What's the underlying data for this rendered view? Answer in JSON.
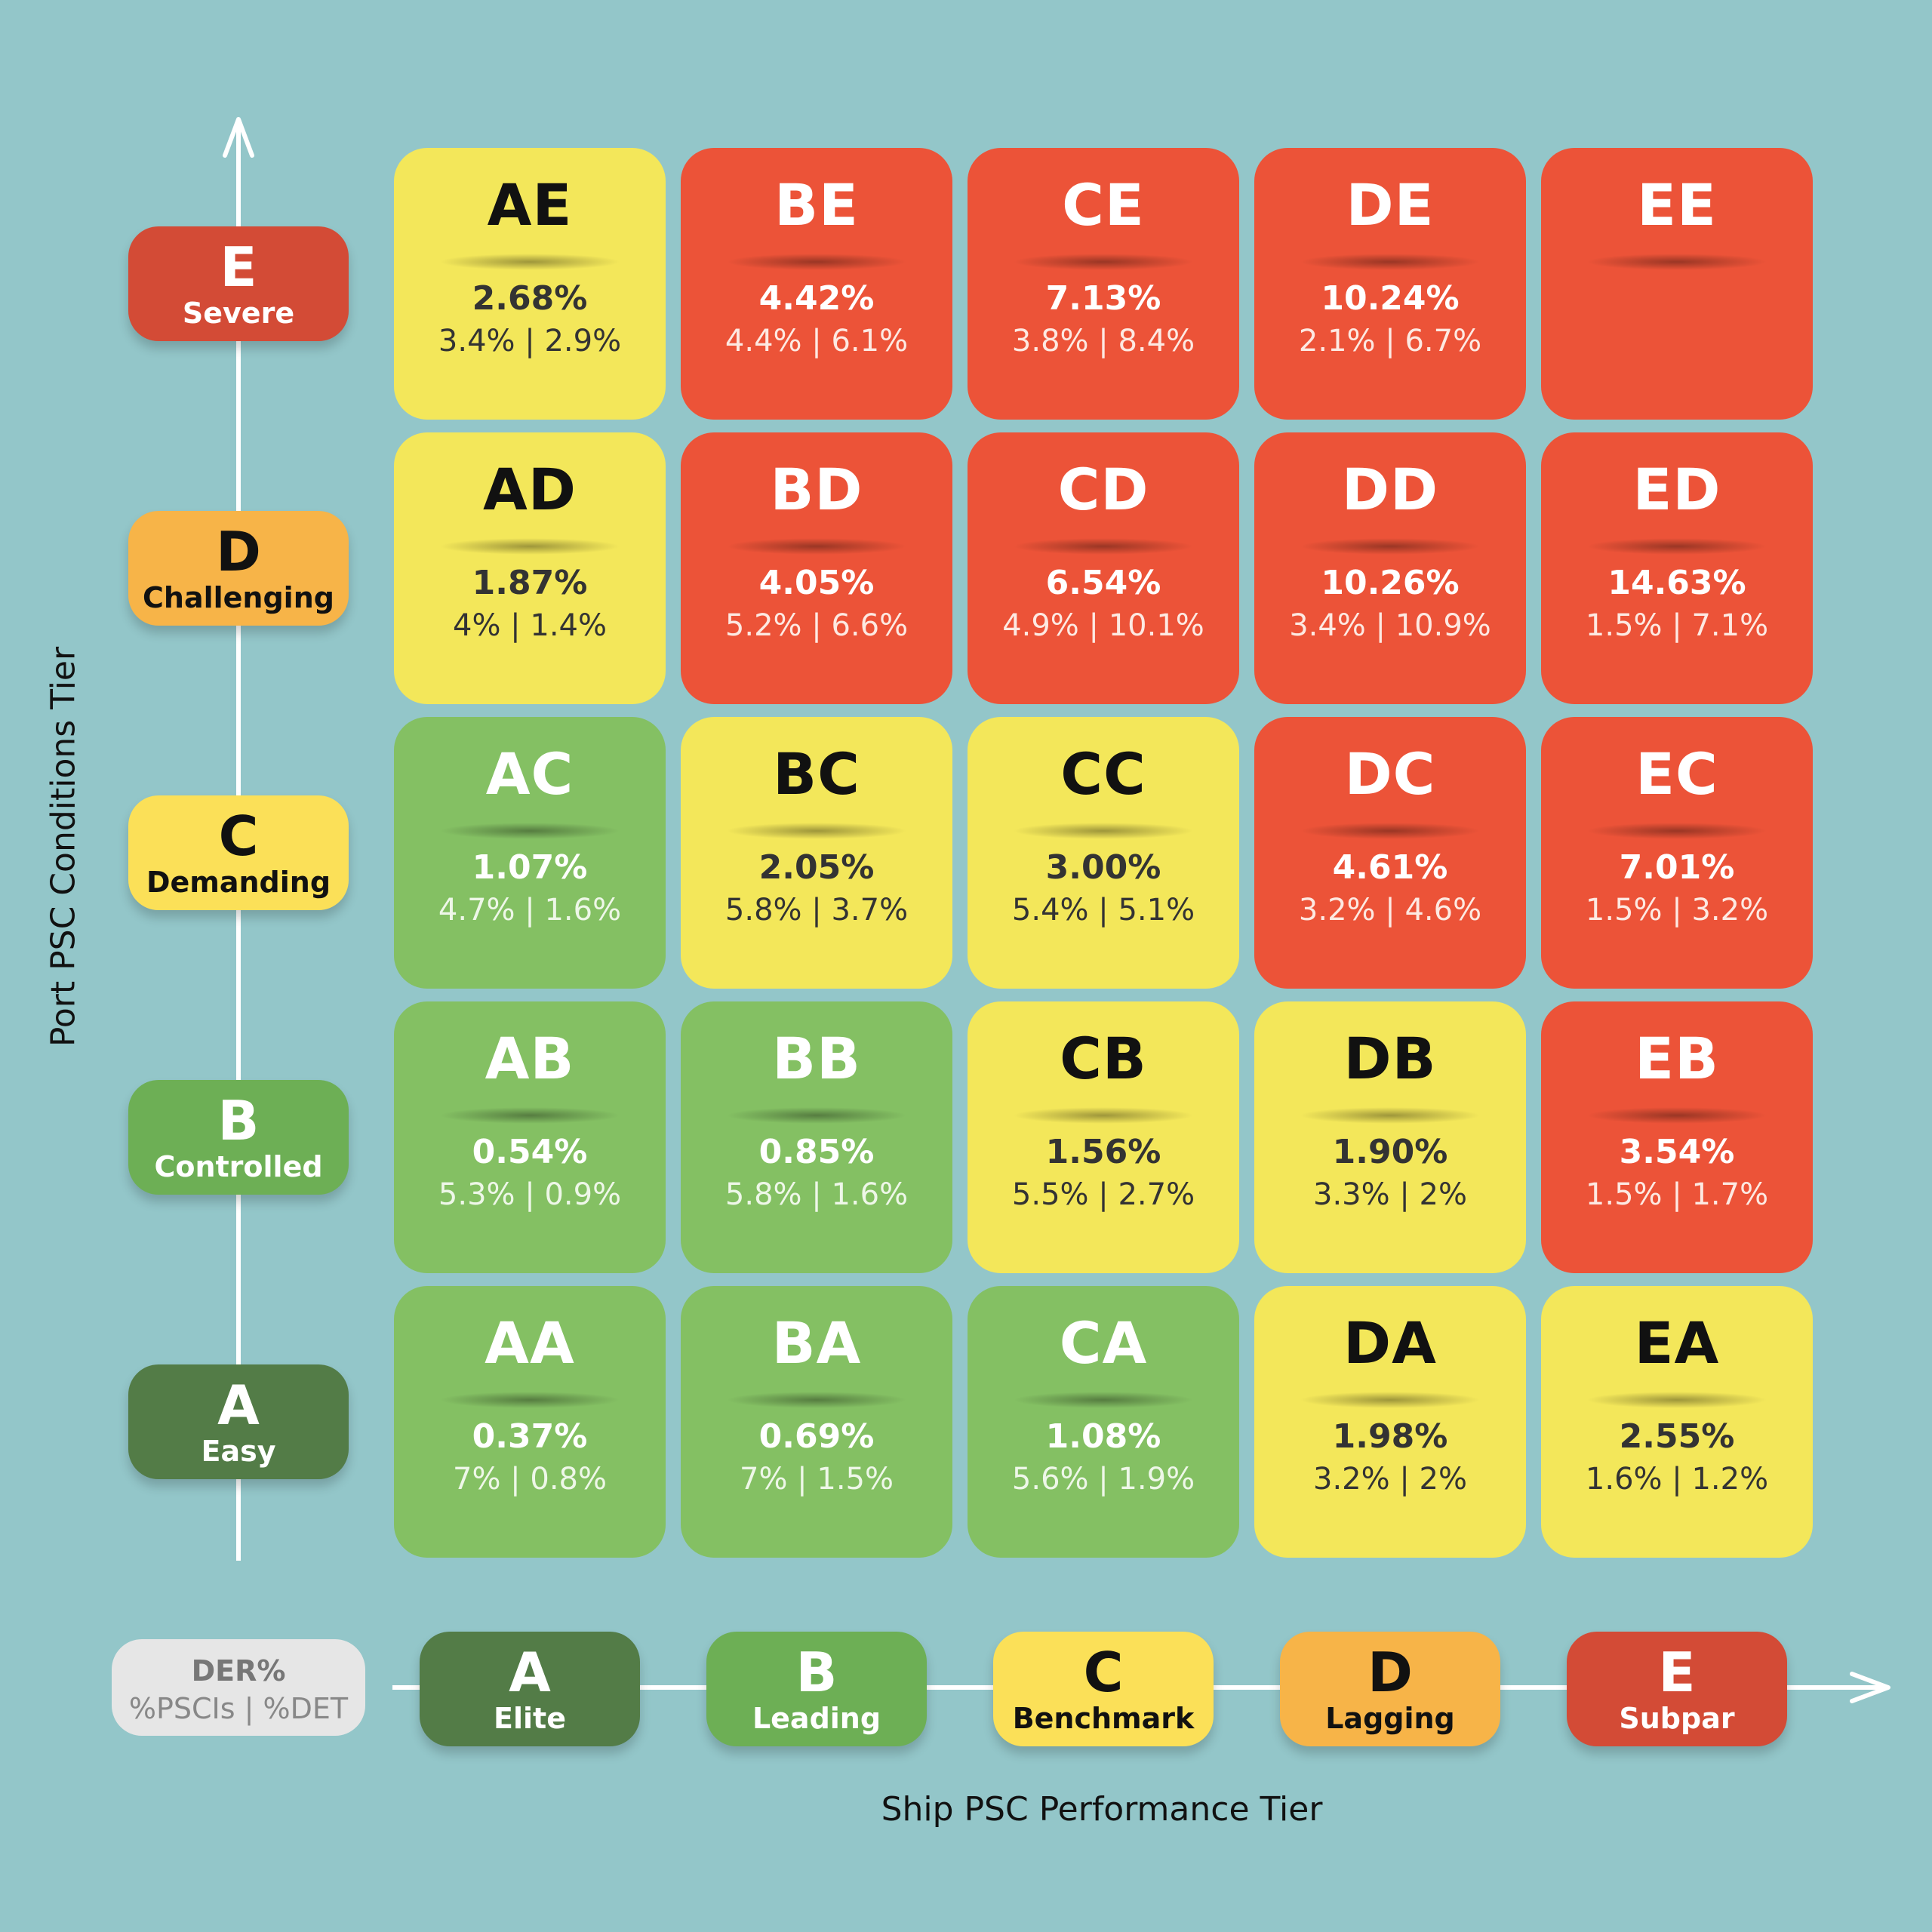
{
  "chart_data": {
    "type": "heatmap",
    "title": "",
    "xlabel": "Ship PSC Performance Tier",
    "ylabel": "Port PSC Conditions Tier",
    "legend": {
      "primary": "DER%",
      "secondary": "%PSCIs | %DET"
    },
    "x_tiers": [
      {
        "letter": "A",
        "label": "Elite",
        "color": "#537c47"
      },
      {
        "letter": "B",
        "label": "Leading",
        "color": "#6daf55"
      },
      {
        "letter": "C",
        "label": "Benchmark",
        "color": "#fbe058"
      },
      {
        "letter": "D",
        "label": "Lagging",
        "color": "#f7b448"
      },
      {
        "letter": "E",
        "label": "Subpar",
        "color": "#d34b36"
      }
    ],
    "y_tiers": [
      {
        "letter": "A",
        "label": "Easy",
        "color": "#537c47"
      },
      {
        "letter": "B",
        "label": "Controlled",
        "color": "#6daf55"
      },
      {
        "letter": "C",
        "label": "Demanding",
        "color": "#fbe058"
      },
      {
        "letter": "D",
        "label": "Challenging",
        "color": "#f7b448"
      },
      {
        "letter": "E",
        "label": "Severe",
        "color": "#d34b36"
      }
    ],
    "colors": {
      "green": "#84c063",
      "yellow": "#f3e75a",
      "red": "#ec5338"
    },
    "cells": [
      {
        "code": "AE",
        "x": "A",
        "y": "E",
        "der": "2.68%",
        "pscis": "3.4%",
        "det": "2.9%",
        "color": "yellow"
      },
      {
        "code": "BE",
        "x": "B",
        "y": "E",
        "der": "4.42%",
        "pscis": "4.4%",
        "det": "6.1%",
        "color": "red"
      },
      {
        "code": "CE",
        "x": "C",
        "y": "E",
        "der": "7.13%",
        "pscis": "3.8%",
        "det": "8.4%",
        "color": "red"
      },
      {
        "code": "DE",
        "x": "D",
        "y": "E",
        "der": "10.24%",
        "pscis": "2.1%",
        "det": "6.7%",
        "color": "red"
      },
      {
        "code": "EE",
        "x": "E",
        "y": "E",
        "der": "",
        "pscis": "",
        "det": "",
        "color": "red"
      },
      {
        "code": "AD",
        "x": "A",
        "y": "D",
        "der": "1.87%",
        "pscis": "4%",
        "det": "1.4%",
        "color": "yellow"
      },
      {
        "code": "BD",
        "x": "B",
        "y": "D",
        "der": "4.05%",
        "pscis": "5.2%",
        "det": "6.6%",
        "color": "red"
      },
      {
        "code": "CD",
        "x": "C",
        "y": "D",
        "der": "6.54%",
        "pscis": "4.9%",
        "det": "10.1%",
        "color": "red"
      },
      {
        "code": "DD",
        "x": "D",
        "y": "D",
        "der": "10.26%",
        "pscis": "3.4%",
        "det": "10.9%",
        "color": "red"
      },
      {
        "code": "ED",
        "x": "E",
        "y": "D",
        "der": "14.63%",
        "pscis": "1.5%",
        "det": "7.1%",
        "color": "red"
      },
      {
        "code": "AC",
        "x": "A",
        "y": "C",
        "der": "1.07%",
        "pscis": "4.7%",
        "det": "1.6%",
        "color": "green"
      },
      {
        "code": "BC",
        "x": "B",
        "y": "C",
        "der": "2.05%",
        "pscis": "5.8%",
        "det": "3.7%",
        "color": "yellow"
      },
      {
        "code": "CC",
        "x": "C",
        "y": "C",
        "der": "3.00%",
        "pscis": "5.4%",
        "det": "5.1%",
        "color": "yellow"
      },
      {
        "code": "DC",
        "x": "D",
        "y": "C",
        "der": "4.61%",
        "pscis": "3.2%",
        "det": "4.6%",
        "color": "red"
      },
      {
        "code": "EC",
        "x": "E",
        "y": "C",
        "der": "7.01%",
        "pscis": "1.5%",
        "det": "3.2%",
        "color": "red"
      },
      {
        "code": "AB",
        "x": "A",
        "y": "B",
        "der": "0.54%",
        "pscis": "5.3%",
        "det": "0.9%",
        "color": "green"
      },
      {
        "code": "BB",
        "x": "B",
        "y": "B",
        "der": "0.85%",
        "pscis": "5.8%",
        "det": "1.6%",
        "color": "green"
      },
      {
        "code": "CB",
        "x": "C",
        "y": "B",
        "der": "1.56%",
        "pscis": "5.5%",
        "det": "2.7%",
        "color": "yellow"
      },
      {
        "code": "DB",
        "x": "D",
        "y": "B",
        "der": "1.90%",
        "pscis": "3.3%",
        "det": "2%",
        "color": "yellow"
      },
      {
        "code": "EB",
        "x": "E",
        "y": "B",
        "der": "3.54%",
        "pscis": "1.5%",
        "det": "1.7%",
        "color": "red"
      },
      {
        "code": "AA",
        "x": "A",
        "y": "A",
        "der": "0.37%",
        "pscis": "7%",
        "det": "0.8%",
        "color": "green"
      },
      {
        "code": "BA",
        "x": "B",
        "y": "A",
        "der": "0.69%",
        "pscis": "7%",
        "det": "1.5%",
        "color": "green"
      },
      {
        "code": "CA",
        "x": "C",
        "y": "A",
        "der": "1.08%",
        "pscis": "5.6%",
        "det": "1.9%",
        "color": "green"
      },
      {
        "code": "DA",
        "x": "D",
        "y": "A",
        "der": "1.98%",
        "pscis": "3.2%",
        "det": "2%",
        "color": "yellow"
      },
      {
        "code": "EA",
        "x": "E",
        "y": "A",
        "der": "2.55%",
        "pscis": "1.6%",
        "det": "1.2%",
        "color": "yellow"
      }
    ]
  }
}
